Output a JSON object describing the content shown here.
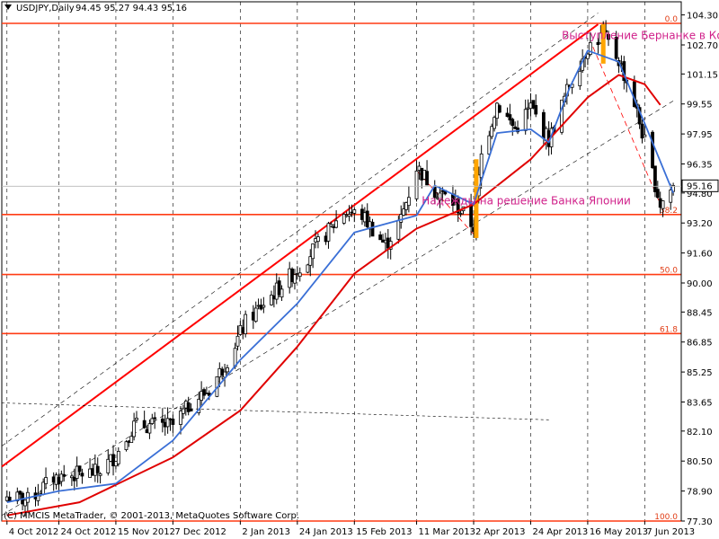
{
  "header": {
    "symbol": "USDJPY,Daily",
    "ohlc": "94.45 95.27 94.43 95.16"
  },
  "copyright": "(C) MMCIS MetaTrader, © 2001-2013, MetaQuotes Software Corp.",
  "price_tag": "95.16",
  "fib_levels": [
    {
      "label": "0.0",
      "price": 103.85
    },
    {
      "label": "38.2",
      "price": 93.65
    },
    {
      "label": "50.0",
      "price": 90.45
    },
    {
      "label": "61.8",
      "price": 87.3
    },
    {
      "label": "100.0",
      "price": 77.3
    }
  ],
  "annotations": [
    {
      "text": "Выступление Бернанке в Конгрессе",
      "date": "2013-05-06",
      "price": 103.0
    },
    {
      "text": "Надежды на решение Банка Японии",
      "date": "2013-03-13",
      "price": 94.2
    }
  ],
  "colors": {
    "fib": "#ff3c14",
    "channel": "#ff0000",
    "ma_fast": "#3a6fd6",
    "ma_slow": "#e00000",
    "candle": "#000000",
    "highlight": "#ffa500",
    "note": "#d0208a"
  },
  "chart_data": {
    "type": "candlestick",
    "title": "USDJPY,Daily",
    "ylim": [
      77.3,
      105.0
    ],
    "y_ticks": [
      104.3,
      102.7,
      101.15,
      99.55,
      97.95,
      96.35,
      94.8,
      93.2,
      91.6,
      90.0,
      88.45,
      86.85,
      85.25,
      83.65,
      82.1,
      80.5,
      78.9,
      77.3
    ],
    "x_ticks": [
      "4 Oct 2012",
      "24 Oct 2012",
      "15 Nov 2012",
      "7 Dec 2012",
      "2 Jan 2013",
      "24 Jan 2013",
      "15 Feb 2013",
      "11 Mar 2013",
      "2 Apr 2013",
      "24 Apr 2013",
      "16 May 2013",
      "7 Jun 2013"
    ],
    "close_path": [
      [
        "2012-10-04",
        78.6
      ],
      [
        "2012-10-12",
        78.4
      ],
      [
        "2012-10-22",
        79.6
      ],
      [
        "2012-10-31",
        79.8
      ],
      [
        "2012-11-08",
        79.9
      ],
      [
        "2012-11-15",
        80.8
      ],
      [
        "2012-11-22",
        82.4
      ],
      [
        "2012-11-30",
        82.4
      ],
      [
        "2012-12-07",
        82.4
      ],
      [
        "2012-12-14",
        83.6
      ],
      [
        "2012-12-21",
        84.3
      ],
      [
        "2012-12-28",
        85.9
      ],
      [
        "2013-01-04",
        87.9
      ],
      [
        "2013-01-11",
        88.9
      ],
      [
        "2013-01-18",
        89.9
      ],
      [
        "2013-01-25",
        90.9
      ],
      [
        "2013-02-04",
        92.6
      ],
      [
        "2013-02-11",
        93.8
      ],
      [
        "2013-02-18",
        93.6
      ],
      [
        "2013-02-27",
        92.0
      ],
      [
        "2013-03-05",
        93.4
      ],
      [
        "2013-03-11",
        96.2
      ],
      [
        "2013-03-18",
        95.0
      ],
      [
        "2013-03-26",
        94.2
      ],
      [
        "2013-04-02",
        93.0
      ],
      [
        "2013-04-05",
        96.8
      ],
      [
        "2013-04-11",
        99.6
      ],
      [
        "2013-04-18",
        98.2
      ],
      [
        "2013-04-24",
        99.4
      ],
      [
        "2013-05-01",
        97.6
      ],
      [
        "2013-05-09",
        100.6
      ],
      [
        "2013-05-16",
        102.6
      ],
      [
        "2013-05-22",
        103.2
      ],
      [
        "2013-05-28",
        101.9
      ],
      [
        "2013-06-03",
        99.6
      ],
      [
        "2013-06-07",
        97.5
      ],
      [
        "2013-06-13",
        94.2
      ],
      [
        "2013-06-18",
        95.16
      ]
    ],
    "ma_fast": [
      [
        "2012-10-04",
        78.3
      ],
      [
        "2012-10-24",
        78.9
      ],
      [
        "2012-11-15",
        79.3
      ],
      [
        "2012-12-07",
        81.6
      ],
      [
        "2013-01-02",
        85.9
      ],
      [
        "2013-01-24",
        88.9
      ],
      [
        "2013-02-15",
        92.7
      ],
      [
        "2013-03-11",
        93.6
      ],
      [
        "2013-03-18",
        95.2
      ],
      [
        "2013-04-02",
        94.2
      ],
      [
        "2013-04-11",
        98.0
      ],
      [
        "2013-04-24",
        98.2
      ],
      [
        "2013-05-01",
        97.5
      ],
      [
        "2013-05-09",
        100.4
      ],
      [
        "2013-05-16",
        102.4
      ],
      [
        "2013-05-28",
        101.8
      ],
      [
        "2013-06-07",
        98.5
      ],
      [
        "2013-06-18",
        94.8
      ]
    ],
    "ma_slow": [
      [
        "2012-10-04",
        77.6
      ],
      [
        "2012-11-01",
        78.3
      ],
      [
        "2012-12-07",
        80.7
      ],
      [
        "2013-01-02",
        83.2
      ],
      [
        "2013-01-24",
        86.6
      ],
      [
        "2013-02-15",
        90.5
      ],
      [
        "2013-03-11",
        92.9
      ],
      [
        "2013-04-02",
        94.2
      ],
      [
        "2013-04-24",
        96.6
      ],
      [
        "2013-05-16",
        99.9
      ],
      [
        "2013-05-28",
        101.1
      ],
      [
        "2013-06-07",
        100.6
      ],
      [
        "2013-06-13",
        99.5
      ]
    ]
  }
}
